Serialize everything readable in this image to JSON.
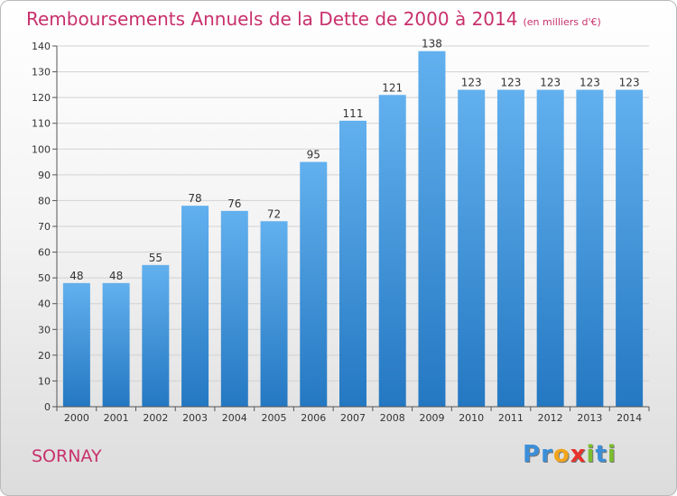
{
  "chart_data": {
    "type": "bar",
    "title": "Remboursements Annuels de la Dette de 2000 à 2014",
    "unit_note": "(en milliers d'€)",
    "categories": [
      "2000",
      "2001",
      "2002",
      "2003",
      "2004",
      "2005",
      "2006",
      "2007",
      "2008",
      "2009",
      "2010",
      "2011",
      "2012",
      "2013",
      "2014"
    ],
    "values": [
      48,
      48,
      55,
      78,
      76,
      72,
      95,
      111,
      121,
      138,
      123,
      123,
      123,
      123,
      123
    ],
    "ylim": [
      0,
      140
    ],
    "yticks": [
      0,
      10,
      20,
      30,
      40,
      50,
      60,
      70,
      80,
      90,
      100,
      110,
      120,
      130,
      140
    ],
    "grid": true,
    "bar_color": "#3d8fd6"
  },
  "footer": {
    "commune": "SORNAY",
    "logo": [
      {
        "char": "P",
        "color": "#3b8fd9"
      },
      {
        "char": "r",
        "color": "#3b8fd9"
      },
      {
        "char": "o",
        "color": "#f2a51a"
      },
      {
        "char": "x",
        "color": "#e8322b"
      },
      {
        "char": "i",
        "color": "#7bbd2e"
      },
      {
        "char": "t",
        "color": "#3b8fd9"
      },
      {
        "char": "i",
        "color": "#7bbd2e"
      }
    ]
  }
}
